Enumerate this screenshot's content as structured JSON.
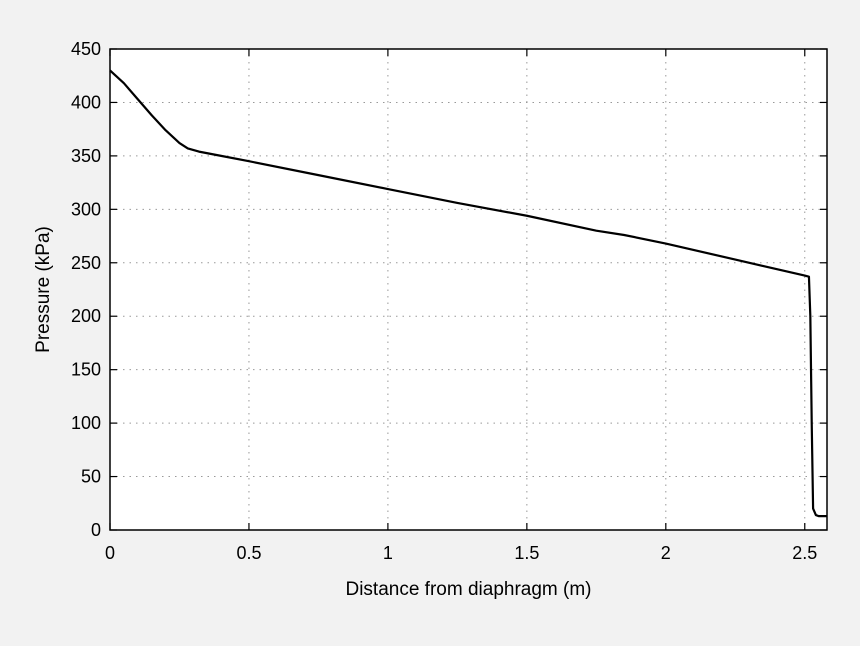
{
  "chart_data": {
    "type": "line",
    "title": "",
    "xlabel": "Distance from diaphragm (m)",
    "ylabel": "Pressure (kPa)",
    "xlim": [
      0,
      2.58
    ],
    "ylim": [
      0,
      450
    ],
    "x_ticks": [
      0,
      0.5,
      1,
      1.5,
      2,
      2.5
    ],
    "x_tick_labels": [
      "0",
      "0.5",
      "1",
      "1.5",
      "2",
      "2.5"
    ],
    "y_ticks": [
      0,
      50,
      100,
      150,
      200,
      250,
      300,
      350,
      400,
      450
    ],
    "y_tick_labels": [
      "0",
      "50",
      "100",
      "150",
      "200",
      "250",
      "300",
      "350",
      "400",
      "450"
    ],
    "grid": true,
    "legend": "none",
    "colors": {
      "line": "#000000",
      "grid": "#999999",
      "background": "#f2f2f2",
      "plot_area": "#ffffff"
    },
    "series": [
      {
        "x": [
          0,
          0.05,
          0.1,
          0.15,
          0.2,
          0.25,
          0.28,
          0.32,
          0.4,
          0.5,
          0.75,
          1.0,
          1.25,
          1.5,
          1.75,
          1.85,
          2.0,
          2.25,
          2.5,
          2.515,
          2.52,
          2.525,
          2.53,
          2.54,
          2.55,
          2.58
        ],
        "values": [
          430,
          418,
          403,
          388,
          374,
          362,
          357,
          354,
          350,
          345,
          332,
          319,
          306,
          294,
          280,
          276,
          268,
          253,
          238,
          237,
          200,
          100,
          20,
          14,
          13,
          13
        ]
      }
    ]
  }
}
